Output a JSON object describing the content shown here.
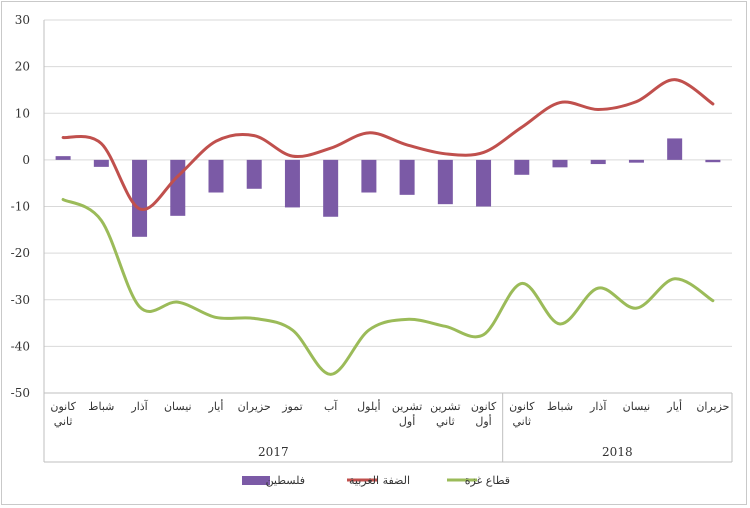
{
  "chart_data": {
    "type": "bar+line",
    "categories": [
      "كانون ثاني",
      "شباط",
      "آذار",
      "نيسان",
      "أيار",
      "حزيران",
      "تموز",
      "آب",
      "أيلول",
      "تشرين أول",
      "تشرين ثاني",
      "كانون أول",
      "كانون ثاني",
      "شباط",
      "آذار",
      "نيسان",
      "أيار",
      "حزيران"
    ],
    "category_lines": [
      [
        "كانون",
        "ثاني"
      ],
      [
        "شباط"
      ],
      [
        "آذار"
      ],
      [
        "نيسان"
      ],
      [
        "أيار"
      ],
      [
        "حزيران"
      ],
      [
        "تموز"
      ],
      [
        "آب"
      ],
      [
        "أيلول"
      ],
      [
        "تشرين",
        "أول"
      ],
      [
        "تشرين",
        "ثاني"
      ],
      [
        "كانون",
        "أول"
      ],
      [
        "كانون",
        "ثاني"
      ],
      [
        "شباط"
      ],
      [
        "آذار"
      ],
      [
        "نيسان"
      ],
      [
        "أيار"
      ],
      [
        "حزيران"
      ]
    ],
    "year_groups": [
      {
        "label": "2017",
        "count": 12
      },
      {
        "label": "2018",
        "count": 6
      }
    ],
    "ylim": [
      -50,
      30
    ],
    "yticks": [
      30,
      20,
      10,
      0,
      -10,
      -20,
      -30,
      -40,
      -50
    ],
    "series": [
      {
        "name": "فلسطين",
        "type": "bar",
        "color": "#7B5AA6",
        "values": [
          0.8,
          -1.5,
          -16.5,
          -12,
          -7,
          -6.2,
          -10.2,
          -12.2,
          -7,
          -7.5,
          -9.5,
          -10,
          -3.2,
          -1.6,
          -0.9,
          -0.6,
          4.6,
          -0.5
        ]
      },
      {
        "name": "الضفة الغربية",
        "type": "line",
        "color": "#C0504D",
        "values": [
          4.8,
          3.5,
          -10.5,
          -3.5,
          4,
          5.2,
          0.8,
          2.5,
          5.8,
          3.2,
          1.3,
          1.6,
          7,
          12.3,
          10.8,
          12.5,
          17.2,
          12
        ]
      },
      {
        "name": "قطاع غزة",
        "type": "line",
        "color": "#9BBB59",
        "values": [
          -8.5,
          -13,
          -31.5,
          -30.5,
          -33.8,
          -34,
          -36.5,
          -46,
          -36.5,
          -34.2,
          -35.7,
          -37.5,
          -26.5,
          -35.2,
          -27.5,
          -31.8,
          -25.5,
          -30.2
        ]
      }
    ],
    "legend_position": "bottom"
  }
}
